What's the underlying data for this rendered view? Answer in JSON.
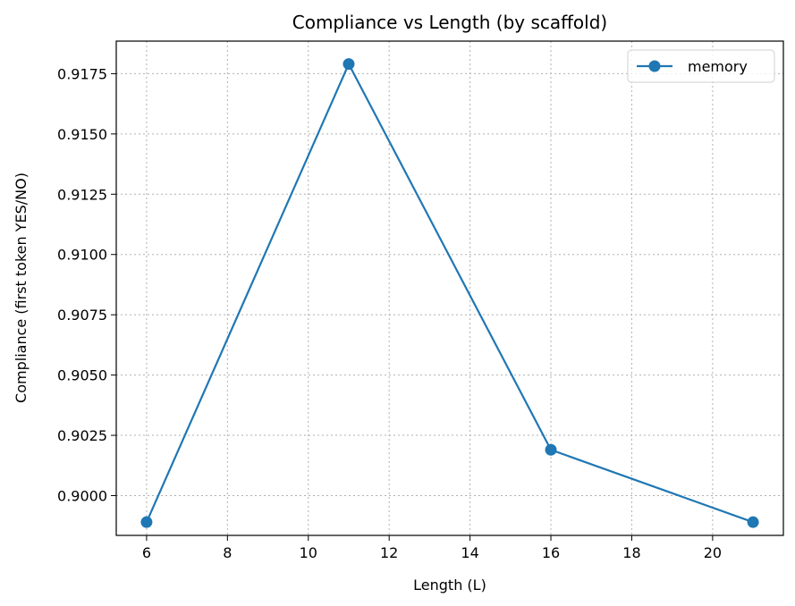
{
  "chart_data": {
    "type": "line",
    "title": "Compliance vs Length (by scaffold)",
    "xlabel": "Length (L)",
    "ylabel": "Compliance (first token YES/NO)",
    "xlim": [
      5.25,
      21.75
    ],
    "ylim": [
      0.89835,
      0.91885
    ],
    "xticks": [
      6,
      8,
      10,
      12,
      14,
      16,
      18,
      20
    ],
    "yticks": [
      0.9,
      0.9025,
      0.905,
      0.9075,
      0.91,
      0.9125,
      0.915,
      0.9175
    ],
    "ytick_labels": [
      "0.9000",
      "0.9025",
      "0.9050",
      "0.9075",
      "0.9100",
      "0.9125",
      "0.9150",
      "0.9175"
    ],
    "grid": true,
    "legend_position": "top-right",
    "series": [
      {
        "name": "memory",
        "color": "#1f77b4",
        "marker": "circle",
        "x": [
          6,
          11,
          16,
          21
        ],
        "y": [
          0.8989,
          0.9179,
          0.9019,
          0.8989
        ]
      }
    ]
  }
}
